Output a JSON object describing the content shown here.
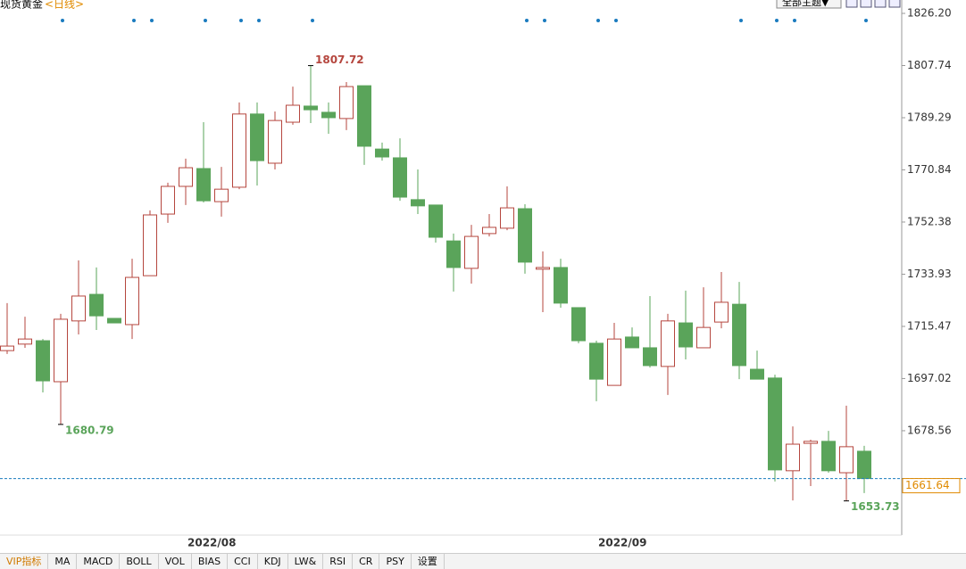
{
  "chart_data": {
    "type": "candlestick",
    "title": "现货黄金",
    "subtitle": "<日线>",
    "categories": [
      null,
      null,
      null,
      null,
      null,
      null,
      null,
      null,
      null,
      null,
      "2022/08",
      null,
      null,
      null,
      null,
      null,
      null,
      null,
      null,
      null,
      null,
      null,
      null,
      null,
      null,
      null,
      null,
      null,
      null,
      null,
      null,
      null,
      null,
      "2022/09",
      null,
      null,
      null,
      null,
      null,
      null,
      null,
      null,
      null,
      null,
      null,
      null,
      null,
      null,
      null
    ],
    "open": [
      1706.9,
      1709.2,
      1710.4,
      1695.9,
      1717.4,
      1726.8,
      1718.3,
      1716.1,
      1733.4,
      1755.2,
      1765.0,
      1771.3,
      1759.6,
      1764.7,
      1790.6,
      1773.2,
      1787.7,
      1793.4,
      1791.2,
      1789.0,
      1800.6,
      1778.2,
      1775.1,
      1760.3,
      1758.4,
      1745.7,
      1736.0,
      1748.3,
      1750.2,
      1757.1,
      1735.7,
      1736.3,
      1722.1,
      1709.5,
      1694.6,
      1711.7,
      1707.9,
      1701.3,
      1716.7,
      1707.9,
      1717.0,
      1723.3,
      1700.3,
      1697.2,
      1664.4,
      1674.1,
      1674.8,
      1663.7,
      1671.3
    ],
    "high": [
      1723.7,
      1718.9,
      1711.0,
      1719.9,
      1738.8,
      1736.3,
      1718.3,
      1739.4,
      1756.5,
      1766.3,
      1774.8,
      1787.7,
      1771.9,
      1794.7,
      1794.7,
      1791.5,
      1800.3,
      1807.72,
      1794.7,
      1801.9,
      1800.6,
      1780.5,
      1782.0,
      1771.0,
      1758.4,
      1748.3,
      1751.4,
      1755.2,
      1765.0,
      1758.7,
      1742.0,
      1739.4,
      1722.1,
      1710.4,
      1716.7,
      1715.1,
      1726.2,
      1719.9,
      1728.1,
      1729.3,
      1734.7,
      1731.2,
      1706.9,
      1698.4,
      1680.1,
      1675.4,
      1678.5,
      1687.4,
      1673.2
    ],
    "low": [
      1705.7,
      1707.9,
      1692.1,
      1680.79,
      1712.6,
      1714.2,
      1716.7,
      1711.0,
      1733.4,
      1752.1,
      1758.4,
      1759.3,
      1754.3,
      1764.0,
      1765.3,
      1771.0,
      1786.8,
      1787.4,
      1783.6,
      1784.9,
      1772.6,
      1774.1,
      1759.9,
      1755.2,
      1745.1,
      1727.8,
      1730.6,
      1747.3,
      1749.5,
      1734.1,
      1720.5,
      1722.1,
      1709.5,
      1689.0,
      1694.6,
      1707.9,
      1700.9,
      1691.2,
      1703.8,
      1707.9,
      1714.8,
      1696.8,
      1696.8,
      1660.6,
      1653.9,
      1659.0,
      1663.7,
      1653.73,
      1656.5
    ],
    "close": [
      1708.5,
      1711.0,
      1696.2,
      1718.0,
      1726.2,
      1719.2,
      1716.7,
      1732.8,
      1754.9,
      1765.0,
      1771.6,
      1759.9,
      1764.0,
      1790.6,
      1774.1,
      1788.3,
      1793.7,
      1792.1,
      1789.3,
      1800.3,
      1779.2,
      1775.4,
      1761.2,
      1758.1,
      1747.0,
      1736.3,
      1747.3,
      1750.5,
      1757.4,
      1738.2,
      1736.3,
      1723.7,
      1710.4,
      1696.8,
      1711.0,
      1707.9,
      1701.6,
      1717.4,
      1708.2,
      1715.1,
      1724.0,
      1701.6,
      1696.8,
      1664.7,
      1673.8,
      1674.8,
      1664.4,
      1672.9,
      1661.64
    ],
    "up_color": "#b5463e",
    "down_color": "#5aa45a",
    "ylim": [
      1641.63,
      1830.93
    ],
    "yticks": [
      {
        "value": 1826.2,
        "label": "1826.20"
      },
      1807.74,
      1789.29,
      1770.84,
      1752.38,
      1733.93,
      1715.47,
      1697.02,
      1678.56
    ],
    "annotations": [
      1807.72,
      1680.79,
      1653.73
    ],
    "last_price": 1661.64
  },
  "theme_button": "全部主题▼",
  "toolbar": [
    "VIP指标",
    "MA",
    "MACD",
    "BOLL",
    "VOL",
    "BIAS",
    "CCI",
    "KDJ",
    "LW&",
    "RSI",
    "CR",
    "PSY",
    "设置"
  ]
}
